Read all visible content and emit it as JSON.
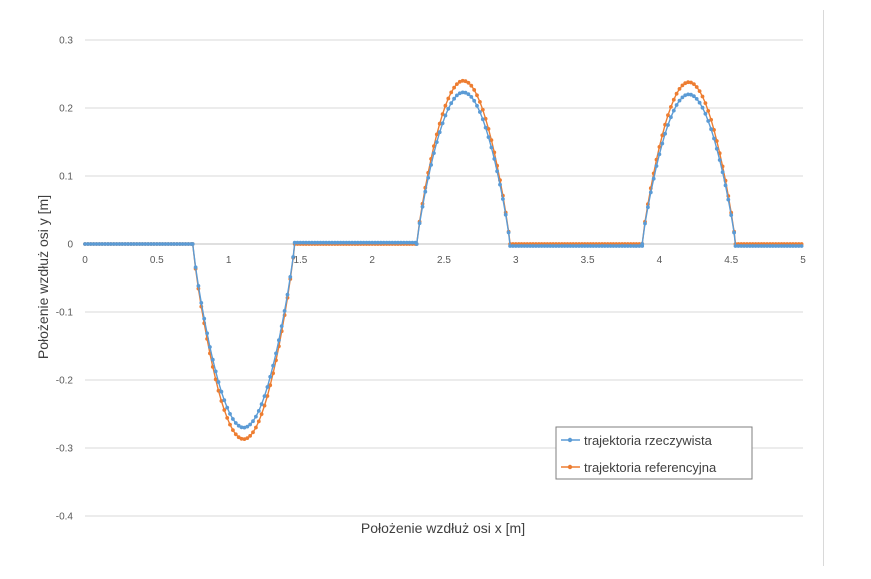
{
  "chart_data": {
    "type": "line",
    "title": "",
    "xlabel": "Położenie wzdłuż osi x [m]",
    "ylabel": "Położenie wzdłuż osi y [m]",
    "xlim": [
      0,
      5
    ],
    "ylim": [
      -0.4,
      0.3
    ],
    "x_ticks": [
      "0",
      "0.5",
      "1",
      "1.5",
      "2",
      "2.5",
      "3",
      "3.5",
      "4",
      "4.5",
      "5"
    ],
    "y_ticks": [
      "0.3",
      "0.2",
      "0.1",
      "0",
      "-0.1",
      "-0.2",
      "-0.3",
      "-0.4"
    ],
    "grid": true,
    "legend_position": "bottom-right",
    "series": [
      {
        "name": "trajektoria rzeczywista",
        "color": "#5b9bd5",
        "segments": [
          {
            "x_start": 0.0,
            "x_end": 0.75,
            "y": 0.0
          },
          {
            "x_start": 0.75,
            "x_end": 1.46,
            "peak": -0.27,
            "peak_x": 1.11
          },
          {
            "x_start": 1.46,
            "x_end": 2.31,
            "y": 0.002
          },
          {
            "x_start": 2.31,
            "x_end": 2.96,
            "peak": 0.223,
            "peak_x": 2.64
          },
          {
            "x_start": 2.96,
            "x_end": 3.88,
            "y": -0.003
          },
          {
            "x_start": 3.88,
            "x_end": 4.53,
            "peak": 0.22,
            "peak_x": 4.2
          },
          {
            "x_start": 4.53,
            "x_end": 5.0,
            "y": -0.003
          }
        ]
      },
      {
        "name": "trajektoria referencyjna",
        "color": "#ed7d31",
        "segments": [
          {
            "x_start": 0.0,
            "x_end": 0.75,
            "y": 0.0
          },
          {
            "x_start": 0.75,
            "x_end": 1.46,
            "peak": -0.287,
            "peak_x": 1.11
          },
          {
            "x_start": 1.46,
            "x_end": 2.31,
            "y": 0.0
          },
          {
            "x_start": 2.31,
            "x_end": 2.96,
            "peak": 0.24,
            "peak_x": 2.64
          },
          {
            "x_start": 2.96,
            "x_end": 3.88,
            "y": 0.0
          },
          {
            "x_start": 3.88,
            "x_end": 4.53,
            "peak": 0.238,
            "peak_x": 4.2
          },
          {
            "x_start": 4.53,
            "x_end": 5.0,
            "y": 0.0
          }
        ]
      }
    ]
  }
}
